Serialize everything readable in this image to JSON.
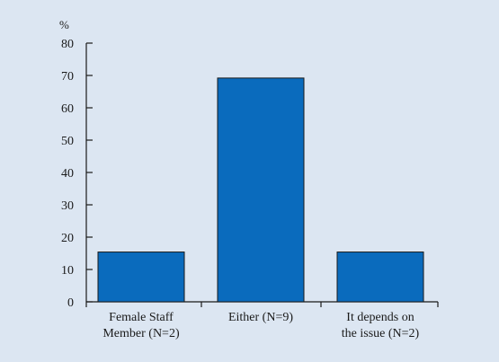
{
  "chart_data": {
    "type": "bar",
    "ylabel": "%",
    "ylim": [
      0,
      80
    ],
    "yticks": [
      0,
      10,
      20,
      30,
      40,
      50,
      60,
      70,
      80
    ],
    "categories": [
      [
        "Female Staff",
        "Member (N=2)"
      ],
      [
        "Either (N=9)"
      ],
      [
        "It depends on",
        "the issue (N=2)"
      ]
    ],
    "values": [
      15.4,
      69.2,
      15.4
    ],
    "grid": false,
    "colors": {
      "bar": "#0a6bbd",
      "bar_stroke": "#1a1a1a",
      "axis": "#1a1a1a",
      "background": "#dce6f2"
    }
  }
}
